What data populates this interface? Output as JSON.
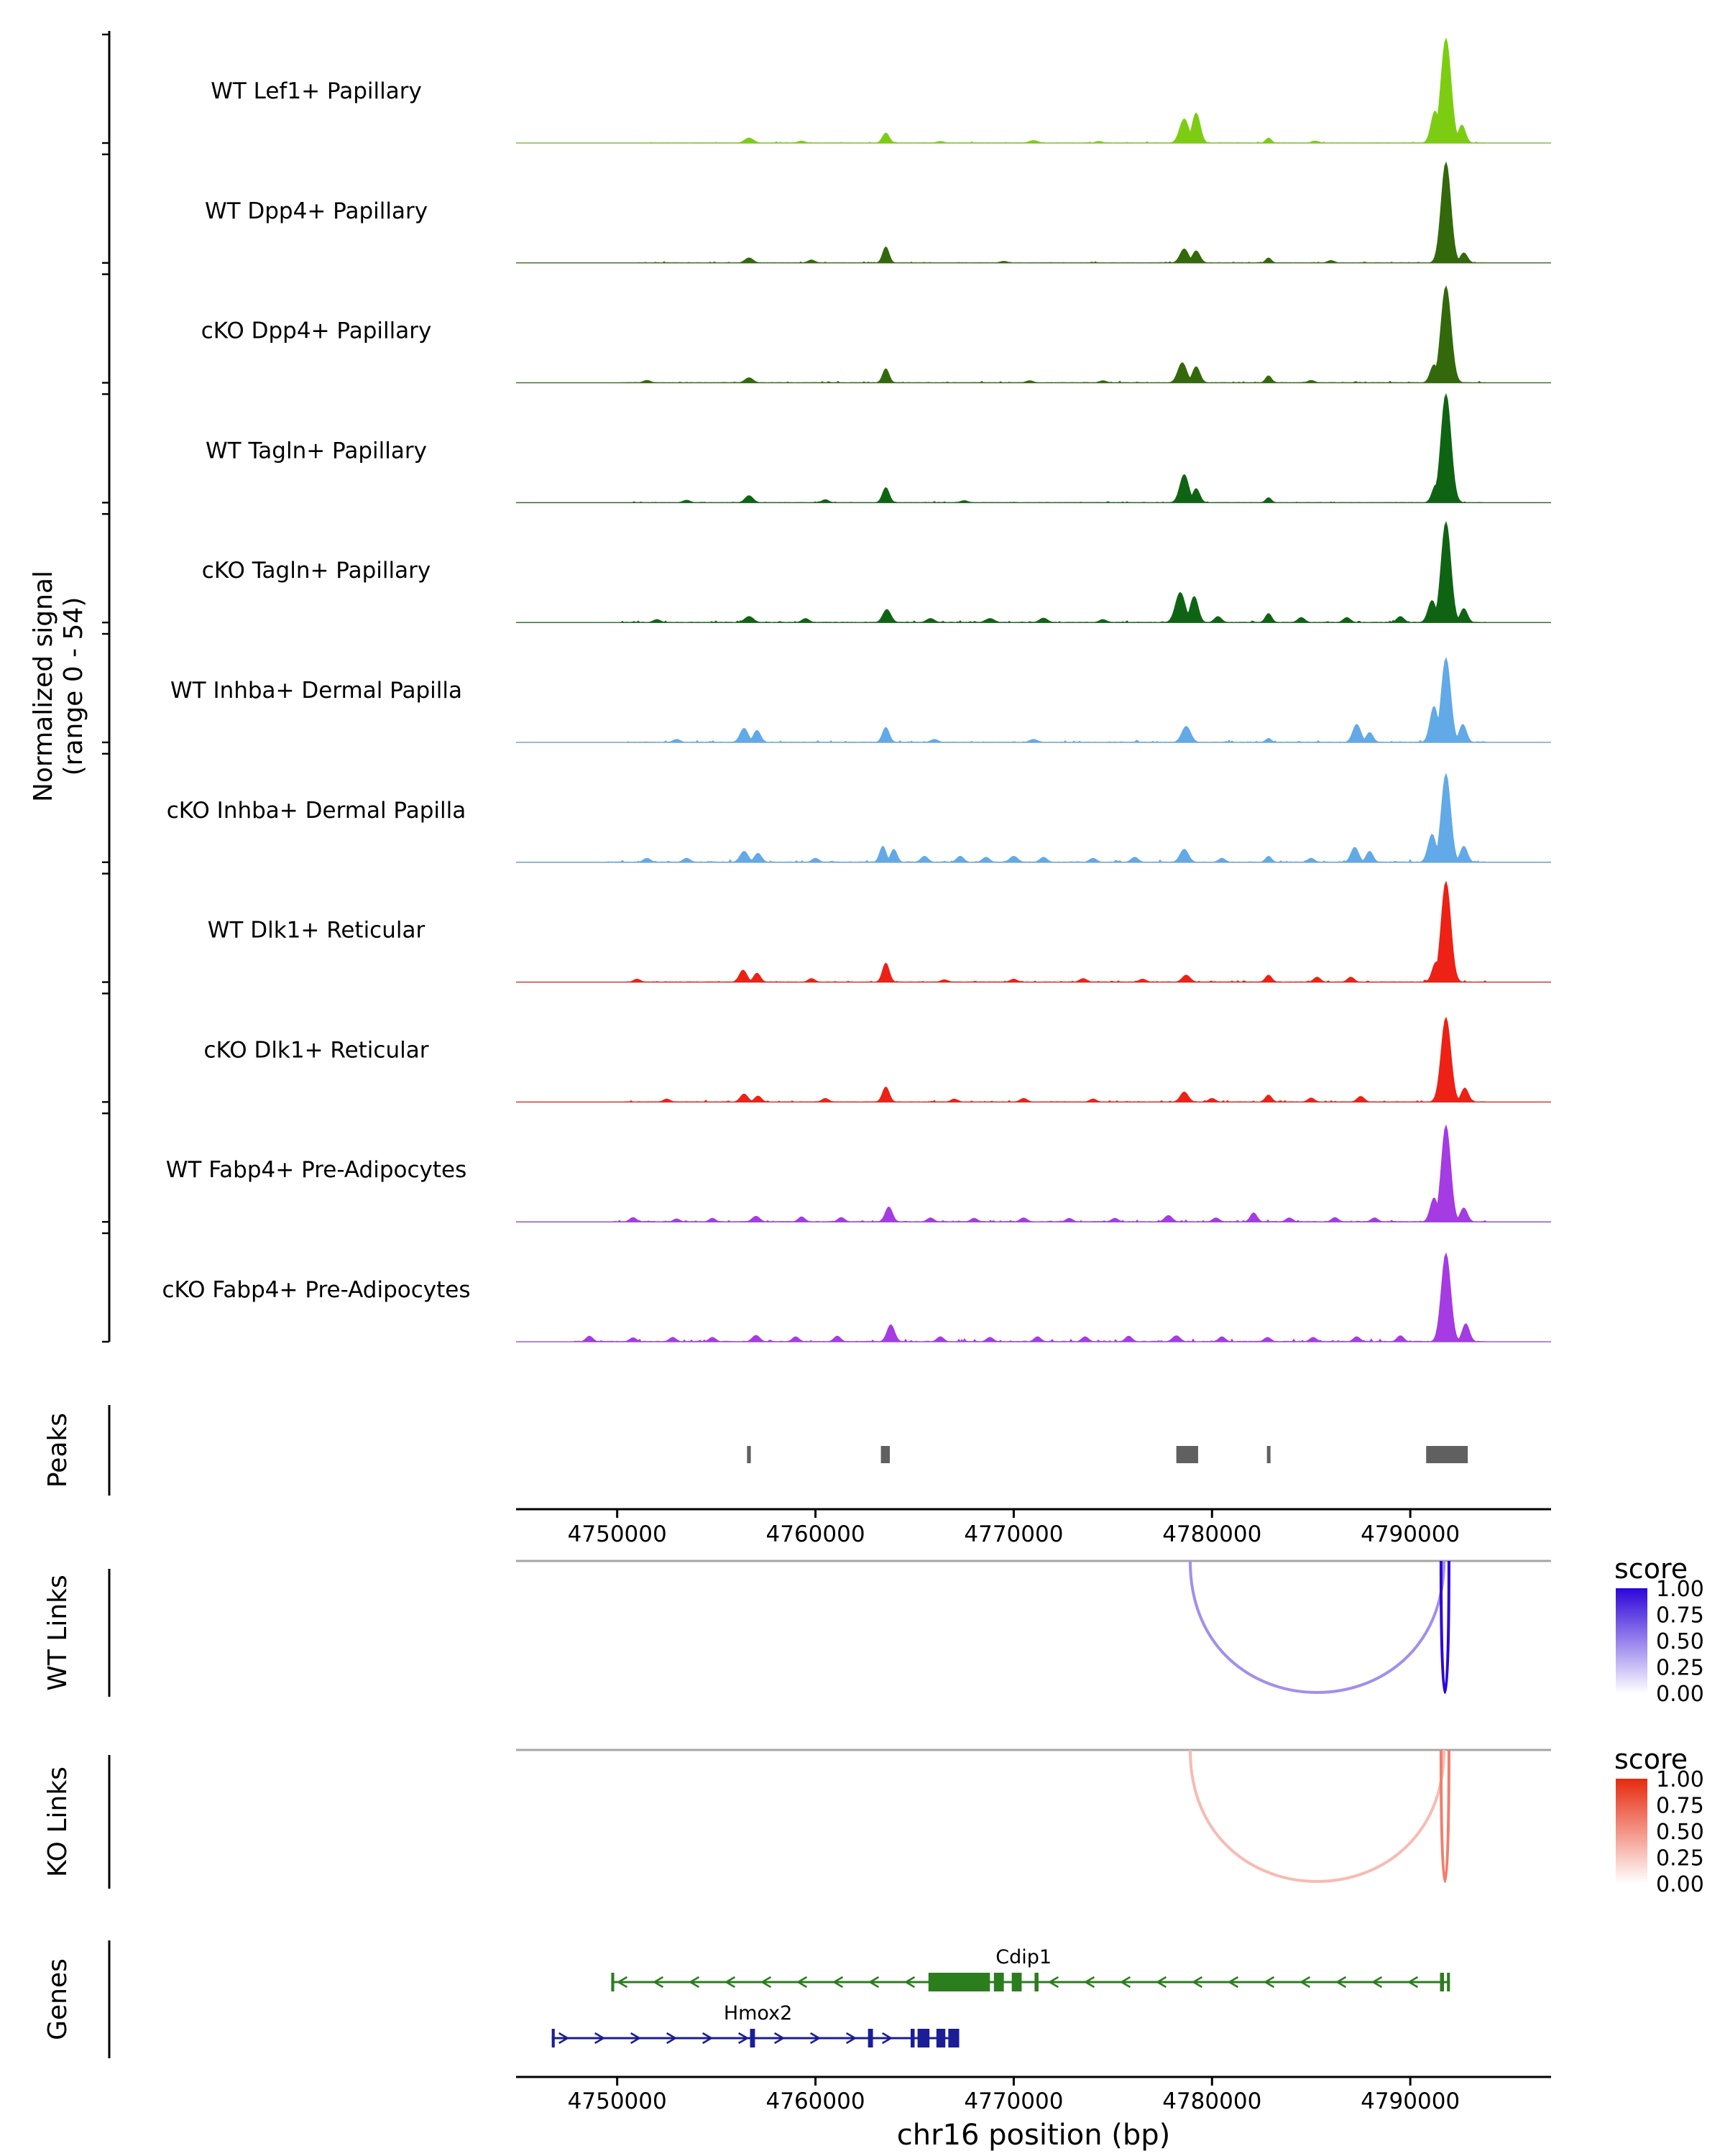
{
  "chart_data": {
    "type": "area",
    "title": "",
    "region": {
      "chrom": "chr16",
      "x_range": [
        4744900,
        4797100
      ]
    },
    "x_axis": {
      "title": "chr16 position (bp)",
      "ticks": [
        4750000,
        4760000,
        4770000,
        4780000,
        4790000
      ]
    },
    "y_axis": {
      "label_line1": "Normalized signal",
      "label_line2": "(range 0 - 54)",
      "range": [
        0,
        54
      ]
    },
    "sections": {
      "peaks": "Peaks",
      "wt_links": "WT Links",
      "ko_links": "KO Links",
      "genes": "Genes"
    },
    "tracks": [
      {
        "label": "WT Lef1+ Papillary",
        "color": "#7ccd12",
        "noise": 0.5,
        "noise_start": 4751500,
        "peaks": [
          [
            4756650,
            2.5,
            220
          ],
          [
            4759300,
            1.0,
            180
          ],
          [
            4763550,
            5,
            170
          ],
          [
            4766300,
            0.8,
            180
          ],
          [
            4771000,
            1.2,
            220
          ],
          [
            4774300,
            0.8,
            180
          ],
          [
            4778600,
            12,
            230
          ],
          [
            4779200,
            15,
            200
          ],
          [
            4782850,
            2.5,
            140
          ],
          [
            4785200,
            1.0,
            180
          ],
          [
            4791250,
            16,
            200
          ],
          [
            4791800,
            52,
            250
          ],
          [
            4792600,
            9,
            180
          ]
        ]
      },
      {
        "label": "WT Dpp4+ Papillary",
        "color": "#33690b",
        "noise": 0.5,
        "noise_start": 4751000,
        "peaks": [
          [
            4756650,
            2.5,
            200
          ],
          [
            4759800,
            1.5,
            170
          ],
          [
            4763550,
            8,
            160
          ],
          [
            4769500,
            0.8,
            180
          ],
          [
            4778600,
            7,
            210
          ],
          [
            4779200,
            6,
            190
          ],
          [
            4782850,
            2.5,
            140
          ],
          [
            4786000,
            1.2,
            170
          ],
          [
            4791800,
            50,
            240
          ],
          [
            4792700,
            5,
            180
          ]
        ]
      },
      {
        "label": "cKO Dpp4+ Papillary",
        "color": "#33690b",
        "noise": 0.6,
        "noise_start": 4750200,
        "peaks": [
          [
            4751500,
            1.2,
            180
          ],
          [
            4756650,
            2.5,
            200
          ],
          [
            4763550,
            7,
            160
          ],
          [
            4770800,
            1.0,
            180
          ],
          [
            4774500,
            1.0,
            180
          ],
          [
            4778500,
            10,
            220
          ],
          [
            4779200,
            8,
            190
          ],
          [
            4782850,
            3.5,
            150
          ],
          [
            4785000,
            1.2,
            170
          ],
          [
            4791200,
            9,
            190
          ],
          [
            4791800,
            48,
            250
          ]
        ]
      },
      {
        "label": "WT Tagln+ Papillary",
        "color": "#0f6414",
        "noise": 0.5,
        "noise_start": 4750800,
        "peaks": [
          [
            4753500,
            1.2,
            180
          ],
          [
            4756650,
            3.5,
            200
          ],
          [
            4760500,
            1.5,
            170
          ],
          [
            4763550,
            7.5,
            170
          ],
          [
            4767500,
            1.0,
            180
          ],
          [
            4778600,
            14,
            220
          ],
          [
            4779200,
            7,
            180
          ],
          [
            4782850,
            2.5,
            140
          ],
          [
            4791300,
            9,
            190
          ],
          [
            4791800,
            54,
            250
          ]
        ]
      },
      {
        "label": "cKO Tagln+ Papillary",
        "color": "#0f6414",
        "noise": 0.8,
        "noise_start": 4750200,
        "peaks": [
          [
            4752000,
            1.5,
            180
          ],
          [
            4756650,
            3,
            220
          ],
          [
            4759500,
            2,
            180
          ],
          [
            4763600,
            6.5,
            200
          ],
          [
            4765800,
            2,
            200
          ],
          [
            4768800,
            2,
            220
          ],
          [
            4771500,
            2.2,
            200
          ],
          [
            4774500,
            1.5,
            180
          ],
          [
            4778400,
            15,
            240
          ],
          [
            4779100,
            13,
            200
          ],
          [
            4780300,
            3,
            180
          ],
          [
            4782850,
            4.5,
            160
          ],
          [
            4784500,
            2.5,
            180
          ],
          [
            4786800,
            2.5,
            180
          ],
          [
            4789500,
            3,
            180
          ],
          [
            4791100,
            11,
            200
          ],
          [
            4791800,
            50,
            240
          ],
          [
            4792700,
            7,
            180
          ]
        ]
      },
      {
        "label": "WT Inhba+ Dermal Papilla",
        "color": "#62a9e7",
        "noise": 0.8,
        "noise_start": 4750500,
        "peaks": [
          [
            4753000,
            1.5,
            180
          ],
          [
            4756400,
            7,
            200
          ],
          [
            4757050,
            6,
            180
          ],
          [
            4763550,
            7.5,
            170
          ],
          [
            4766000,
            1.5,
            180
          ],
          [
            4771000,
            1.5,
            200
          ],
          [
            4778700,
            8,
            220
          ],
          [
            4782850,
            2,
            140
          ],
          [
            4787300,
            9,
            200
          ],
          [
            4787950,
            5,
            170
          ],
          [
            4791200,
            18,
            200
          ],
          [
            4791800,
            42,
            230
          ],
          [
            4792650,
            9,
            180
          ]
        ]
      },
      {
        "label": "cKO Inhba+ Dermal Papilla",
        "color": "#62a9e7",
        "noise": 1.0,
        "noise_start": 4749500,
        "peaks": [
          [
            4751500,
            2,
            180
          ],
          [
            4753500,
            2,
            180
          ],
          [
            4756400,
            5.5,
            200
          ],
          [
            4757100,
            4.5,
            180
          ],
          [
            4760000,
            2,
            170
          ],
          [
            4763400,
            8,
            160
          ],
          [
            4763950,
            6.5,
            160
          ],
          [
            4765500,
            3,
            180
          ],
          [
            4767300,
            3,
            180
          ],
          [
            4768600,
            2.5,
            180
          ],
          [
            4770000,
            3,
            200
          ],
          [
            4771500,
            2.5,
            180
          ],
          [
            4774000,
            2,
            180
          ],
          [
            4776100,
            2.5,
            180
          ],
          [
            4778600,
            6.5,
            210
          ],
          [
            4780500,
            2,
            170
          ],
          [
            4782850,
            3,
            150
          ],
          [
            4785000,
            2,
            170
          ],
          [
            4787200,
            7.5,
            190
          ],
          [
            4787950,
            5.5,
            170
          ],
          [
            4791100,
            14,
            200
          ],
          [
            4791800,
            44,
            230
          ],
          [
            4792700,
            8,
            180
          ]
        ]
      },
      {
        "label": "WT Dlk1+ Reticular",
        "color": "#ed2115",
        "noise": 0.7,
        "noise_start": 4750300,
        "peaks": [
          [
            4751000,
            1.5,
            170
          ],
          [
            4756350,
            6,
            190
          ],
          [
            4757050,
            4.5,
            170
          ],
          [
            4759800,
            1.8,
            170
          ],
          [
            4763550,
            9.5,
            170
          ],
          [
            4766500,
            1.2,
            170
          ],
          [
            4770000,
            1.5,
            180
          ],
          [
            4773500,
            1.8,
            180
          ],
          [
            4776500,
            1.5,
            180
          ],
          [
            4778700,
            3.5,
            200
          ],
          [
            4782850,
            3.5,
            160
          ],
          [
            4785300,
            2.5,
            170
          ],
          [
            4787000,
            2.5,
            170
          ],
          [
            4791300,
            10,
            190
          ],
          [
            4791800,
            50,
            240
          ]
        ]
      },
      {
        "label": "cKO Dlk1+ Reticular",
        "color": "#ed2115",
        "noise": 0.7,
        "noise_start": 4750300,
        "peaks": [
          [
            4752500,
            1.5,
            170
          ],
          [
            4756400,
            4,
            190
          ],
          [
            4757100,
            3,
            170
          ],
          [
            4760500,
            1.8,
            170
          ],
          [
            4763550,
            7.5,
            170
          ],
          [
            4767000,
            1.5,
            170
          ],
          [
            4770500,
            1.8,
            180
          ],
          [
            4774000,
            1.5,
            170
          ],
          [
            4778600,
            5,
            200
          ],
          [
            4780000,
            1.8,
            170
          ],
          [
            4782850,
            3.5,
            160
          ],
          [
            4785000,
            2,
            170
          ],
          [
            4787500,
            2.8,
            180
          ],
          [
            4791800,
            42,
            240
          ],
          [
            4792750,
            7,
            180
          ]
        ]
      },
      {
        "label": "WT Fabp4+ Pre-Adipocytes",
        "color": "#a43be3",
        "noise": 1.0,
        "noise_start": 4749800,
        "peaks": [
          [
            4750800,
            2.2,
            170
          ],
          [
            4753000,
            1.5,
            160
          ],
          [
            4754800,
            1.8,
            160
          ],
          [
            4757000,
            2.8,
            190
          ],
          [
            4759300,
            2.5,
            170
          ],
          [
            4761300,
            2.2,
            170
          ],
          [
            4763700,
            7.5,
            180
          ],
          [
            4765800,
            2,
            170
          ],
          [
            4768000,
            1.8,
            170
          ],
          [
            4770500,
            2,
            180
          ],
          [
            4772800,
            1.8,
            170
          ],
          [
            4775100,
            1.8,
            170
          ],
          [
            4777800,
            3.2,
            190
          ],
          [
            4780200,
            2,
            170
          ],
          [
            4782100,
            4.5,
            170
          ],
          [
            4783900,
            2,
            170
          ],
          [
            4786200,
            2.2,
            170
          ],
          [
            4788200,
            2,
            170
          ],
          [
            4791200,
            12,
            190
          ],
          [
            4791800,
            48,
            230
          ],
          [
            4792700,
            7,
            180
          ]
        ]
      },
      {
        "label": "cKO Fabp4+ Pre-Adipocytes",
        "color": "#a43be3",
        "noise": 1.2,
        "noise_start": 4747800,
        "peaks": [
          [
            4748600,
            2.8,
            170
          ],
          [
            4750800,
            2,
            170
          ],
          [
            4752800,
            2.2,
            170
          ],
          [
            4754800,
            2.2,
            170
          ],
          [
            4757000,
            3.2,
            190
          ],
          [
            4759000,
            2.5,
            170
          ],
          [
            4761100,
            2.8,
            170
          ],
          [
            4763800,
            8.5,
            190
          ],
          [
            4766300,
            2.5,
            170
          ],
          [
            4768800,
            2.2,
            170
          ],
          [
            4771200,
            2.5,
            170
          ],
          [
            4773600,
            2.5,
            170
          ],
          [
            4775800,
            2.8,
            170
          ],
          [
            4778200,
            3,
            190
          ],
          [
            4780500,
            2.5,
            170
          ],
          [
            4782800,
            2.2,
            170
          ],
          [
            4785100,
            2.2,
            170
          ],
          [
            4787300,
            2.5,
            170
          ],
          [
            4789500,
            3,
            170
          ],
          [
            4791800,
            44,
            230
          ],
          [
            4792800,
            9,
            180
          ]
        ]
      }
    ],
    "peaks_track": {
      "color": "#606060",
      "intervals": [
        [
          4756550,
          4756740
        ],
        [
          4763300,
          4763750
        ],
        [
          4778200,
          4779300
        ],
        [
          4782770,
          4782950
        ],
        [
          4790800,
          4792900
        ]
      ]
    },
    "links": {
      "wt": {
        "panel": "WT Links",
        "legend_title": "score",
        "legend_ticks": [
          "1.00",
          "0.75",
          "0.50",
          "0.25",
          "0.00"
        ],
        "max_color": "#2d05d8",
        "arcs": [
          {
            "start": 4778900,
            "end": 4791700,
            "score": 0.45
          },
          {
            "start": 4791550,
            "end": 4791950,
            "score": 1.0
          }
        ]
      },
      "ko": {
        "panel": "KO Links",
        "legend_title": "score",
        "legend_ticks": [
          "1.00",
          "0.75",
          "0.50",
          "0.25",
          "0.00"
        ],
        "max_color": "#e62a0e",
        "arcs": [
          {
            "start": 4778900,
            "end": 4791700,
            "score": 0.32
          },
          {
            "start": 4791550,
            "end": 4791950,
            "score": 0.6
          }
        ]
      }
    },
    "genes": [
      {
        "name": "Cdip1",
        "strand": "-",
        "color": "#2b7d1e",
        "start": 4749700,
        "end": 4792000,
        "label_bp": 4770500,
        "exons": [
          [
            4749700,
            4749850
          ],
          [
            4765700,
            4768800
          ],
          [
            4769000,
            4769500
          ],
          [
            4769900,
            4770400
          ],
          [
            4771050,
            4771250
          ],
          [
            4791500,
            4791700
          ],
          [
            4791850,
            4792000
          ]
        ]
      },
      {
        "name": "Hmox2",
        "strand": "+",
        "color": "#1b1d96",
        "start": 4746700,
        "end": 4767250,
        "label_bp": 4757100,
        "exons": [
          [
            4746700,
            4746850
          ],
          [
            4756700,
            4756950
          ],
          [
            4762650,
            4762900
          ],
          [
            4764800,
            4765000
          ],
          [
            4765150,
            4765750
          ],
          [
            4766100,
            4766550
          ],
          [
            4766700,
            4767250
          ]
        ]
      }
    ]
  }
}
